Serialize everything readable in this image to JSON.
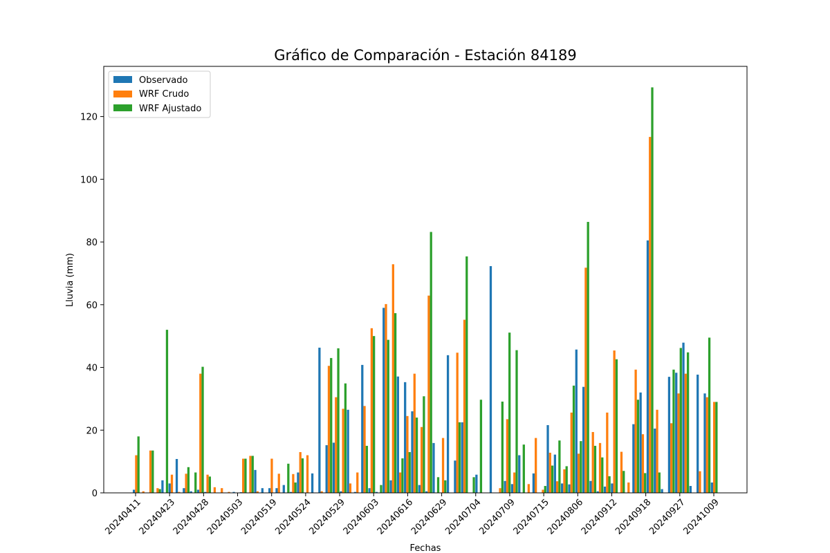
{
  "chart_data": {
    "type": "bar",
    "title": "Gráfico de Comparación - Estación 84189",
    "xlabel": "Fechas",
    "ylabel": "Lluvia (mm)",
    "ylim": [
      0,
      136
    ],
    "yticks": [
      0,
      20,
      40,
      60,
      80,
      100,
      120
    ],
    "xtick_labels": [
      "20240411",
      "20240423",
      "20240428",
      "20240503",
      "20240519",
      "20240524",
      "20240529",
      "20240603",
      "20240616",
      "20240629",
      "20240704",
      "20240709",
      "20240715",
      "20240806",
      "20240912",
      "20240918",
      "20240927",
      "20241009"
    ],
    "legend_position": "upper left",
    "colors": {
      "Observado": "#1f77b4",
      "WRF Crudo": "#ff7f0e",
      "WRF Ajustado": "#2ca02c"
    },
    "series": [
      {
        "name": "Observado",
        "values": [
          1.0,
          0,
          0,
          0,
          4.0,
          3.0,
          10.8,
          1.5,
          0.5,
          1.0,
          0.3,
          0,
          0,
          0,
          0.3,
          0.2,
          0,
          7.3,
          1.5,
          1.5,
          1.5,
          2.5,
          0.3,
          6.5,
          0,
          6.2,
          46.3,
          15.2,
          16.0,
          0.5,
          26.5,
          0.3,
          40.8,
          1.5,
          0.3,
          59.0,
          4.0,
          37.1,
          35.3,
          26.0,
          2.5,
          0.5,
          15.9,
          0,
          43.9,
          10.3,
          22.5,
          0,
          5.8,
          0,
          72.3,
          0,
          3.8,
          2.8,
          12.0,
          0,
          6.2,
          0,
          21.6,
          12.2,
          3.0,
          2.7,
          45.7,
          33.8,
          3.8,
          0.5,
          2.0,
          3.0,
          0,
          0,
          21.9,
          32.0,
          80.5,
          20.5,
          1.2,
          37.0,
          38.3,
          47.9,
          2.2,
          37.7,
          31.7,
          3.3
        ]
      },
      {
        "name": "WRF Crudo",
        "values": [
          12.0,
          0.5,
          13.5,
          1.5,
          0,
          5.8,
          0.3,
          6.1,
          0,
          38.0,
          5.8,
          1.8,
          1.5,
          0.3,
          0,
          10.9,
          11.8,
          0.5,
          0,
          10.9,
          6.1,
          0,
          6.0,
          13.0,
          12.0,
          0,
          0.5,
          40.5,
          30.5,
          26.8,
          3.0,
          6.5,
          27.7,
          52.5,
          0,
          60.2,
          72.9,
          6.5,
          24.5,
          38.0,
          21.0,
          62.9,
          0,
          17.5,
          0,
          44.7,
          55.2,
          0,
          0,
          0,
          0,
          1.5,
          23.5,
          6.5,
          0,
          2.8,
          17.5,
          1.0,
          12.8,
          3.7,
          7.5,
          25.6,
          12.5,
          71.8,
          19.4,
          15.9,
          25.6,
          45.4,
          13.1,
          3.3,
          39.3,
          18.7,
          113.5,
          26.5,
          0,
          22.2,
          31.7,
          38.0,
          0,
          6.9,
          30.5,
          29.0
        ]
      },
      {
        "name": "WRF Ajustado",
        "values": [
          18.0,
          0,
          13.5,
          1.2,
          52.0,
          0,
          0,
          8.2,
          6.5,
          40.2,
          5.2,
          0,
          0,
          0,
          0,
          10.9,
          11.8,
          0,
          0,
          0,
          0,
          9.3,
          3.3,
          11.0,
          0,
          0,
          0,
          43.0,
          46.1,
          34.9,
          0,
          0,
          15.0,
          50.0,
          2.5,
          48.8,
          57.3,
          11.0,
          13.0,
          24.0,
          30.8,
          83.2,
          5.0,
          4.0,
          0,
          22.5,
          75.4,
          5.0,
          29.7,
          0,
          0,
          29.1,
          51.1,
          45.5,
          15.4,
          0,
          0,
          2.2,
          8.7,
          16.7,
          8.5,
          34.2,
          16.5,
          86.4,
          15.0,
          11.3,
          5.3,
          42.6,
          7.0,
          0,
          29.7,
          6.3,
          129.3,
          6.5,
          0,
          39.3,
          46.2,
          44.8,
          0,
          0,
          49.5,
          29.0
        ]
      }
    ]
  }
}
